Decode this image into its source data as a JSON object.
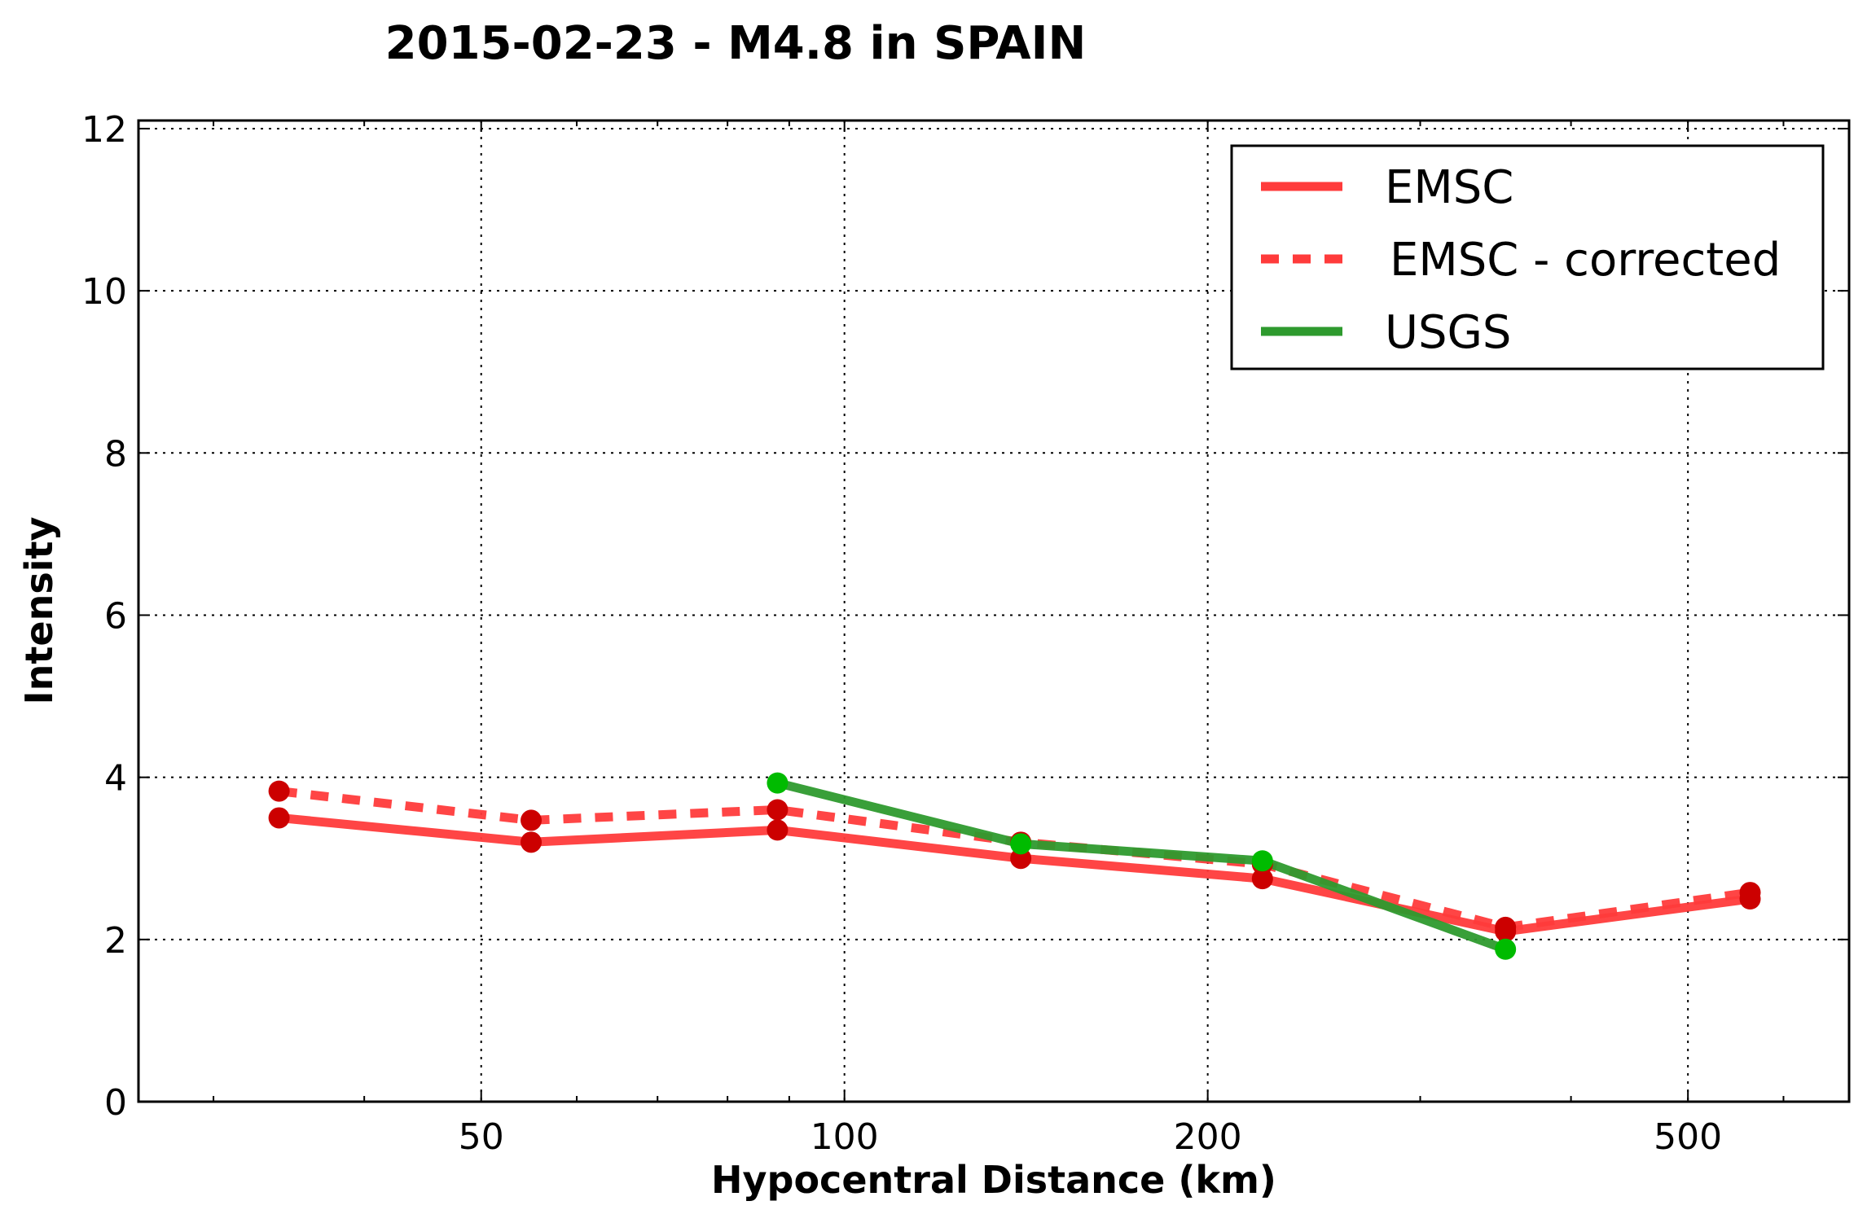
{
  "chart_data": {
    "type": "line",
    "title": "2015-02-23 - M4.8 in SPAIN",
    "xlabel": "Hypocentral Distance (km)",
    "ylabel": "Intensity",
    "xscale": "log",
    "xlim": [
      26,
      680
    ],
    "ylim": [
      0,
      12.1
    ],
    "xticks": [
      50,
      100,
      200,
      500
    ],
    "xtick_labels": [
      "50",
      "100",
      "200",
      "500"
    ],
    "yticks": [
      0,
      2,
      4,
      6,
      8,
      10,
      12
    ],
    "ytick_labels": [
      "0",
      "2",
      "4",
      "6",
      "8",
      "10",
      "12"
    ],
    "grid": true,
    "legend_position": "top-right",
    "series": [
      {
        "name": "EMSC",
        "style": "solid",
        "color": "#ff3b3b",
        "marker_color": "#cc0000",
        "x": [
          34,
          55,
          88,
          140,
          222,
          353,
          563
        ],
        "y": [
          3.5,
          3.2,
          3.35,
          3.0,
          2.75,
          2.1,
          2.5
        ]
      },
      {
        "name": "EMSC - corrected",
        "style": "dashed",
        "color": "#ff3b3b",
        "marker_color": "#cc0000",
        "x": [
          34,
          55,
          88,
          140,
          222,
          353,
          563
        ],
        "y": [
          3.83,
          3.47,
          3.6,
          3.2,
          2.93,
          2.15,
          2.58
        ]
      },
      {
        "name": "USGS",
        "style": "solid",
        "color": "#2e9a2e",
        "marker_color": "#00bb00",
        "x": [
          88,
          140,
          222,
          353
        ],
        "y": [
          3.93,
          3.18,
          2.97,
          1.88
        ]
      }
    ]
  }
}
